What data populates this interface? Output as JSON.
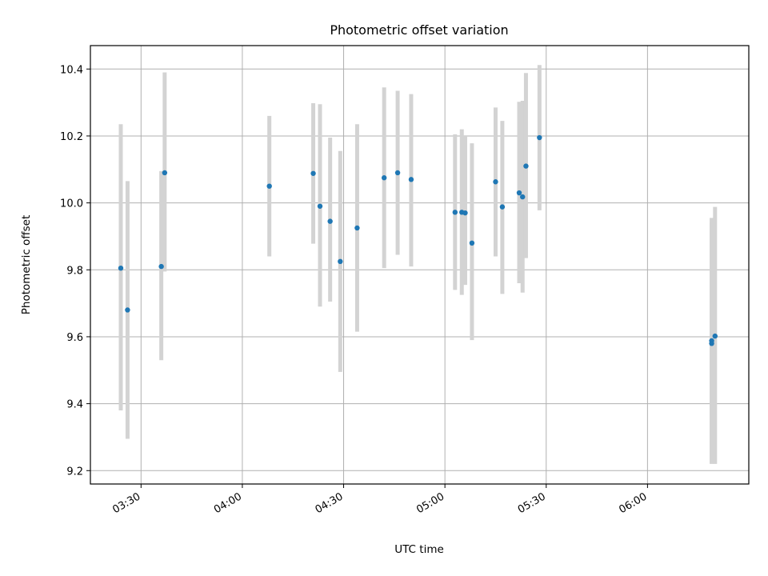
{
  "chart_data": {
    "type": "scatter",
    "title": "Photometric offset variation",
    "xlabel": "UTC time",
    "ylabel": "Photometric offset",
    "x_unit": "HH:MM",
    "xlim": [
      "03:15",
      "06:30"
    ],
    "ylim": [
      9.16,
      10.47
    ],
    "x_ticks": [
      "03:30",
      "04:00",
      "04:30",
      "05:00",
      "05:30",
      "06:00"
    ],
    "y_ticks": [
      9.2,
      9.4,
      9.6,
      9.8,
      10.0,
      10.2,
      10.4
    ],
    "y_tick_labels": [
      "9.2",
      "9.4",
      "9.6",
      "9.8",
      "10.0",
      "10.2",
      "10.4"
    ],
    "grid": true,
    "legend": "none",
    "colors": {
      "points": "#1f77b4",
      "errorbars": "#d3d3d3",
      "grid": "#b0b0b0",
      "axes": "#000000"
    },
    "series": [
      {
        "points": [
          {
            "x": "03:24",
            "y": 9.805,
            "ylow": 9.38,
            "yhigh": 10.235
          },
          {
            "x": "03:26",
            "y": 9.68,
            "ylow": 9.295,
            "yhigh": 10.065
          },
          {
            "x": "03:36",
            "y": 9.81,
            "ylow": 9.53,
            "yhigh": 10.095
          },
          {
            "x": "03:37",
            "y": 10.09,
            "ylow": 9.795,
            "yhigh": 10.39
          },
          {
            "x": "04:08",
            "y": 10.05,
            "ylow": 9.84,
            "yhigh": 10.26
          },
          {
            "x": "04:21",
            "y": 10.088,
            "ylow": 9.878,
            "yhigh": 10.298
          },
          {
            "x": "04:23",
            "y": 9.99,
            "ylow": 9.69,
            "yhigh": 10.295
          },
          {
            "x": "04:26",
            "y": 9.945,
            "ylow": 9.705,
            "yhigh": 10.195
          },
          {
            "x": "04:29",
            "y": 9.825,
            "ylow": 9.495,
            "yhigh": 10.155
          },
          {
            "x": "04:34",
            "y": 9.925,
            "ylow": 9.615,
            "yhigh": 10.235
          },
          {
            "x": "04:42",
            "y": 10.075,
            "ylow": 9.805,
            "yhigh": 10.345
          },
          {
            "x": "04:46",
            "y": 10.09,
            "ylow": 9.845,
            "yhigh": 10.335
          },
          {
            "x": "04:50",
            "y": 10.07,
            "ylow": 9.81,
            "yhigh": 10.325
          },
          {
            "x": "05:03",
            "y": 9.972,
            "ylow": 9.74,
            "yhigh": 10.205
          },
          {
            "x": "05:05",
            "y": 9.972,
            "ylow": 9.725,
            "yhigh": 10.22
          },
          {
            "x": "05:06",
            "y": 9.97,
            "ylow": 9.755,
            "yhigh": 10.2
          },
          {
            "x": "05:08",
            "y": 9.88,
            "ylow": 9.59,
            "yhigh": 10.178
          },
          {
            "x": "05:15",
            "y": 10.063,
            "ylow": 9.84,
            "yhigh": 10.285
          },
          {
            "x": "05:17",
            "y": 9.988,
            "ylow": 9.728,
            "yhigh": 10.245
          },
          {
            "x": "05:22",
            "y": 10.03,
            "ylow": 9.76,
            "yhigh": 10.302
          },
          {
            "x": "05:23",
            "y": 10.018,
            "ylow": 9.732,
            "yhigh": 10.305
          },
          {
            "x": "05:24",
            "y": 10.11,
            "ylow": 9.835,
            "yhigh": 10.388
          },
          {
            "x": "05:28",
            "y": 10.195,
            "ylow": 9.978,
            "yhigh": 10.412
          },
          {
            "x": "06:19",
            "y": 9.588,
            "ylow": 9.222,
            "yhigh": 9.955
          },
          {
            "x": "06:19",
            "y": 9.58,
            "ylow": 9.22,
            "yhigh": 9.94
          },
          {
            "x": "06:20",
            "y": 9.602,
            "ylow": 9.22,
            "yhigh": 9.988
          }
        ]
      }
    ]
  }
}
